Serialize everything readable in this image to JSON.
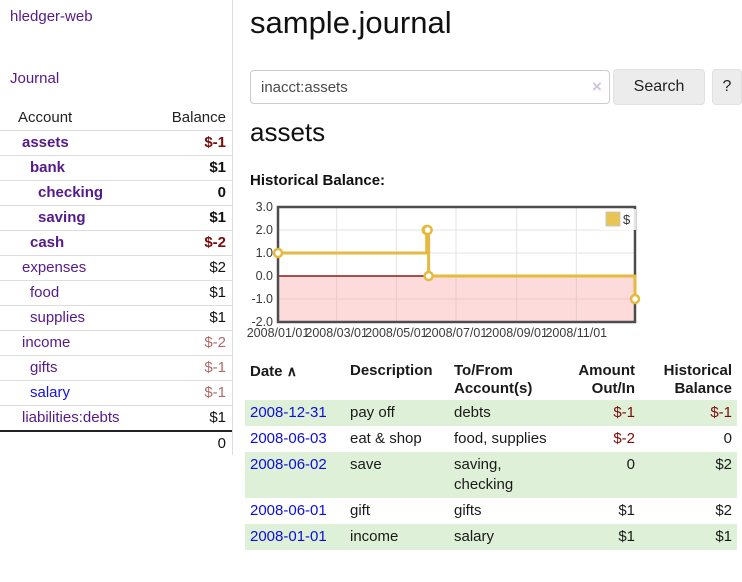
{
  "app": {
    "brand": "hledger-web",
    "nav_journal": "Journal"
  },
  "sidebar": {
    "header": {
      "account": "Account",
      "balance": "Balance"
    },
    "rows": [
      {
        "label": "assets",
        "balance": "$-1",
        "indent": 1,
        "bold": true,
        "neg": "strong",
        "link": "purple"
      },
      {
        "label": "bank",
        "balance": "$1",
        "indent": 2,
        "bold": true,
        "neg": "none",
        "link": "purple"
      },
      {
        "label": "checking",
        "balance": "0",
        "indent": 3,
        "bold": true,
        "neg": "none",
        "link": "purple"
      },
      {
        "label": "saving",
        "balance": "$1",
        "indent": 3,
        "bold": true,
        "neg": "none",
        "link": "purple"
      },
      {
        "label": "cash",
        "balance": "$-2",
        "indent": 2,
        "bold": true,
        "neg": "strong",
        "link": "purple"
      },
      {
        "label": "expenses",
        "balance": "$2",
        "indent": 1,
        "bold": false,
        "neg": "none",
        "link": "purple"
      },
      {
        "label": "food",
        "balance": "$1",
        "indent": 2,
        "bold": false,
        "neg": "none",
        "link": "purple"
      },
      {
        "label": "supplies",
        "balance": "$1",
        "indent": 2,
        "bold": false,
        "neg": "none",
        "link": "purple"
      },
      {
        "label": "income",
        "balance": "$-2",
        "indent": 1,
        "bold": false,
        "neg": "light",
        "link": "purple"
      },
      {
        "label": "gifts",
        "balance": "$-1",
        "indent": 2,
        "bold": false,
        "neg": "light",
        "link": "purple"
      },
      {
        "label": "salary",
        "balance": "$-1",
        "indent": 2,
        "bold": false,
        "neg": "light",
        "link": "blue"
      },
      {
        "label": "liabilities:debts",
        "balance": "$1",
        "indent": 1,
        "bold": false,
        "neg": "none",
        "link": "purple"
      }
    ],
    "total": "0"
  },
  "main": {
    "title": "sample.journal",
    "search": {
      "value": "inacct:assets",
      "clear_icon": "×",
      "button_label": "Search",
      "help_label": "?"
    },
    "account_heading": "assets",
    "chart_label": "Historical Balance:"
  },
  "chart_data": {
    "type": "line",
    "step": true,
    "title": "Historical Balance:",
    "legend": [
      {
        "label": "$",
        "color": "#e9c453"
      }
    ],
    "legend_position": "top-right",
    "series": [
      {
        "name": "$",
        "color": "#e5ba41",
        "points": [
          [
            "2008-01-01",
            1
          ],
          [
            "2008-06-01",
            2
          ],
          [
            "2008-06-02",
            2
          ],
          [
            "2008-06-03",
            0
          ],
          [
            "2008-12-31",
            -1
          ]
        ]
      }
    ],
    "xlim": [
      "2008-01-01",
      "2008-12-31"
    ],
    "ylim": [
      -2,
      3
    ],
    "x_ticks": [
      "2008/01/01",
      "2008/03/01",
      "2008/05/01",
      "2008/07/01",
      "2008/09/01",
      "2008/11/01"
    ],
    "y_ticks": [
      3.0,
      2.0,
      1.0,
      0.0,
      -1.0,
      -2.0
    ],
    "grid": true,
    "negative_region_color": "rgba(250,160,160,0.38)",
    "zero_line_color": "#8c1a17",
    "border_color": "#4d4d4d",
    "grid_color": "#e3e3e3"
  },
  "table": {
    "headers": {
      "date": "Date",
      "sort_icon": "∧",
      "description": "Description",
      "accounts": "To/From Account(s)",
      "amount": "Amount Out/In",
      "balance": "Historical Balance"
    },
    "rows": [
      {
        "date": "2008-12-31",
        "description": "pay off",
        "accounts": "debts",
        "amount": "$-1",
        "balance": "$-1",
        "shade": true
      },
      {
        "date": "2008-06-03",
        "description": "eat & shop",
        "accounts": "food, supplies",
        "amount": "$-2",
        "balance": "0",
        "shade": false
      },
      {
        "date": "2008-06-02",
        "description": "save",
        "accounts": "saving, checking",
        "amount": "0",
        "balance": "$2",
        "shade": true
      },
      {
        "date": "2008-06-01",
        "description": "gift",
        "accounts": "gifts",
        "amount": "$1",
        "balance": "$2",
        "shade": false
      },
      {
        "date": "2008-01-01",
        "description": "income",
        "accounts": "salary",
        "amount": "$1",
        "balance": "$1",
        "shade": true
      }
    ]
  }
}
